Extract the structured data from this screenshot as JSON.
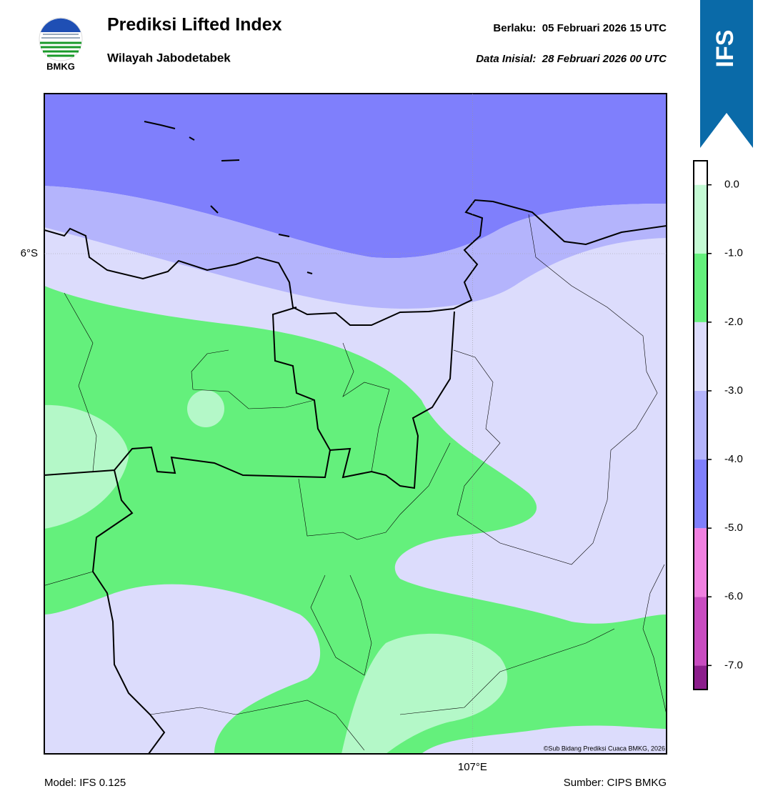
{
  "header": {
    "title": "Prediksi Lifted Index",
    "subtitle": "Wilayah Jabodetabek",
    "valid": "Berlaku:  05 Februari 2026 15 UTC",
    "init": "Data Inisial:  28 Februari 2026 00 UTC"
  },
  "logo": {
    "text": "BMKG"
  },
  "badge": {
    "text": "IFS"
  },
  "map": {
    "xlim": [
      106.36,
      107.29
    ],
    "ylim": [
      -6.75,
      -5.76
    ],
    "xticks": [
      {
        "value": 107,
        "label": "107°E"
      }
    ],
    "yticks": [
      {
        "value": -6,
        "label": "6°S"
      }
    ],
    "credit": "©Sub Bidang Prediksi Cuaca BMKG, 2026"
  },
  "colorbar": {
    "lim": [
      -7.35,
      0.35
    ],
    "levels": [
      -7,
      -6,
      -5,
      -4,
      -3,
      -2,
      -1,
      0
    ],
    "colors": [
      "#8c1e8c",
      "#c84cc0",
      "#f080e0",
      "#7f7ffc",
      "#b4b4fc",
      "#dcdcfc",
      "#64f07c",
      "#c4fad4",
      "#ffffff"
    ],
    "ticks": [
      {
        "value": 0,
        "label": "0.0"
      },
      {
        "value": -1,
        "label": "-1.0"
      },
      {
        "value": -2,
        "label": "-2.0"
      },
      {
        "value": -3,
        "label": "-3.0"
      },
      {
        "value": -4,
        "label": "-4.0"
      },
      {
        "value": -5,
        "label": "-5.0"
      },
      {
        "value": -6,
        "label": "-6.0"
      },
      {
        "value": -7,
        "label": "-7.0"
      }
    ]
  },
  "footer": {
    "model": "Model: IFS 0.125",
    "source": "Sumber: CIPS BMKG"
  }
}
